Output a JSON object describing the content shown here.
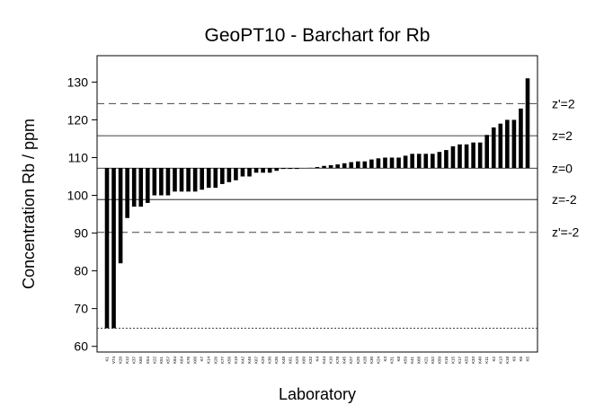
{
  "chart_data": {
    "type": "bar",
    "title": "GeoPT10 - Barchart for Rb",
    "x_label": "Laboratory",
    "y_label": "Concentration Rb / ppm",
    "categories": [
      "K1",
      "V74",
      "K20",
      "K12",
      "K37",
      "K65",
      "K54",
      "K22",
      "K51",
      "K57",
      "K84",
      "K64",
      "K76",
      "K66",
      "K7",
      "K14",
      "K26",
      "K77",
      "K56",
      "K19",
      "K42",
      "K46",
      "K67",
      "K29",
      "K30",
      "K35",
      "K48",
      "K61",
      "K23",
      "K60",
      "K32",
      "K4",
      "K44",
      "K10",
      "K78",
      "K45",
      "K27",
      "K25",
      "K28",
      "K30",
      "K24",
      "K3",
      "K31",
      "K8",
      "K59",
      "K41",
      "K68",
      "K21",
      "K52",
      "K50",
      "K16",
      "K15",
      "K17",
      "K53",
      "K33",
      "K40",
      "K11",
      "K2",
      "K13",
      "K18",
      "K9",
      "K6",
      "K5"
    ],
    "values": [
      64.8,
      64.8,
      82,
      94,
      97,
      97,
      98,
      100,
      100,
      100,
      101,
      101,
      101,
      101,
      101.5,
      102,
      102,
      103,
      103.5,
      104,
      105,
      105,
      106,
      106,
      106,
      106.5,
      107,
      107,
      107,
      107.2,
      107.3,
      107.5,
      107.8,
      108,
      108.2,
      108.5,
      108.8,
      109,
      109,
      109.5,
      109.8,
      110,
      110,
      110,
      110.5,
      111,
      111,
      111,
      111,
      111.5,
      112,
      113,
      113.5,
      113.5,
      114,
      114,
      116,
      118,
      119,
      120,
      120,
      123,
      131
    ],
    "baseline": 107.2,
    "color": "#000000",
    "ylim": [
      58.5,
      137
    ],
    "yticks": [
      60,
      70,
      80,
      90,
      100,
      110,
      120,
      130
    ],
    "reference_lines": [
      {
        "value": 124.3,
        "label": "z'=2",
        "style": "dashed"
      },
      {
        "value": 115.8,
        "label": "z=2",
        "style": "solid"
      },
      {
        "value": 107.2,
        "label": "z=0",
        "style": "solid"
      },
      {
        "value": 98.9,
        "label": "z=-2",
        "style": "solid"
      },
      {
        "value": 90.2,
        "label": "z'=-2",
        "style": "dashed"
      },
      {
        "value": 64.8,
        "style": "dotted"
      }
    ]
  }
}
